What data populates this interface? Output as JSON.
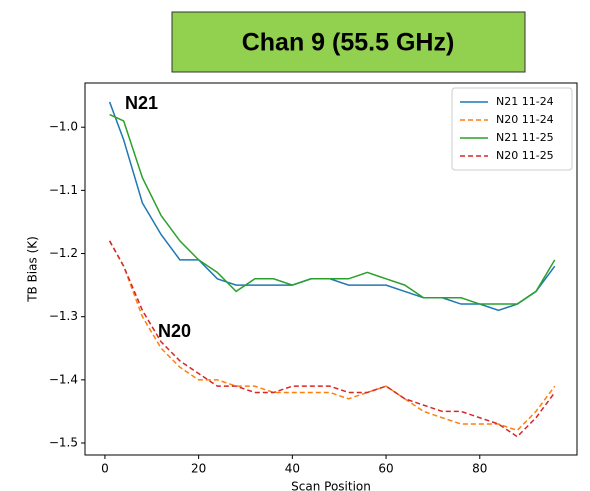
{
  "chart_data": {
    "type": "line",
    "title": "Chan 9 (55.5 GHz)",
    "xlabel": "Scan Position",
    "ylabel": "TB Bias (K)",
    "annotations": [
      "N21",
      "N20"
    ],
    "x": [
      1,
      4,
      8,
      12,
      16,
      20,
      24,
      28,
      32,
      36,
      40,
      44,
      48,
      52,
      56,
      60,
      64,
      68,
      72,
      76,
      80,
      84,
      88,
      92,
      96
    ],
    "series": [
      {
        "name": "N21 11-24",
        "color": "#1f77b4",
        "linestyle": "solid",
        "values": [
          -0.96,
          -1.02,
          -1.12,
          -1.17,
          -1.21,
          -1.21,
          -1.24,
          -1.25,
          -1.25,
          -1.25,
          -1.25,
          -1.24,
          -1.24,
          -1.25,
          -1.25,
          -1.25,
          -1.26,
          -1.27,
          -1.27,
          -1.28,
          -1.28,
          -1.29,
          -1.28,
          -1.26,
          -1.22
        ]
      },
      {
        "name": "N20 11-24",
        "color": "#ff7f0e",
        "linestyle": "dashed",
        "values": [
          -1.18,
          -1.22,
          -1.3,
          -1.35,
          -1.38,
          -1.4,
          -1.4,
          -1.41,
          -1.41,
          -1.42,
          -1.42,
          -1.42,
          -1.42,
          -1.43,
          -1.42,
          -1.41,
          -1.43,
          -1.45,
          -1.46,
          -1.47,
          -1.47,
          -1.47,
          -1.48,
          -1.45,
          -1.41
        ]
      },
      {
        "name": "N21 11-25",
        "color": "#2ca02c",
        "linestyle": "solid",
        "values": [
          -0.98,
          -0.99,
          -1.08,
          -1.14,
          -1.18,
          -1.21,
          -1.23,
          -1.26,
          -1.24,
          -1.24,
          -1.25,
          -1.24,
          -1.24,
          -1.24,
          -1.23,
          -1.24,
          -1.25,
          -1.27,
          -1.27,
          -1.27,
          -1.28,
          -1.28,
          -1.28,
          -1.26,
          -1.21
        ]
      },
      {
        "name": "N20 11-25",
        "color": "#d62728",
        "linestyle": "dashed",
        "values": [
          -1.18,
          -1.22,
          -1.29,
          -1.34,
          -1.37,
          -1.39,
          -1.41,
          -1.41,
          -1.42,
          -1.42,
          -1.41,
          -1.41,
          -1.41,
          -1.42,
          -1.42,
          -1.41,
          -1.43,
          -1.44,
          -1.45,
          -1.45,
          -1.46,
          -1.47,
          -1.49,
          -1.46,
          -1.42
        ]
      }
    ],
    "xlim": [
      -4.25,
      100.75
    ],
    "xticks": [
      0,
      20,
      40,
      60,
      80
    ],
    "ylim": [
      -1.519,
      -0.93
    ],
    "yticks": [
      {
        "value": -1.0,
        "label": "−1.0"
      },
      {
        "value": -1.1,
        "label": "−1.1"
      },
      {
        "value": -1.2,
        "label": "−1.2"
      },
      {
        "value": -1.3,
        "label": "−1.3"
      },
      {
        "value": -1.4,
        "label": "−1.4"
      },
      {
        "value": -1.5,
        "label": "−1.5"
      }
    ],
    "legend": "upper right",
    "grid": false
  }
}
